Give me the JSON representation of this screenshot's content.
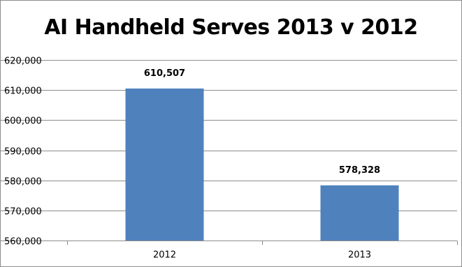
{
  "chart_data": {
    "type": "bar",
    "title": "AI Handheld Serves 2013 v 2012",
    "xlabel": "",
    "ylabel": "",
    "categories": [
      "2012",
      "2013"
    ],
    "values": [
      610507,
      578328
    ],
    "data_labels": [
      "610,507",
      "578,328"
    ],
    "ylim": [
      560000,
      620000
    ],
    "yticks": [
      560000,
      570000,
      580000,
      590000,
      600000,
      610000,
      620000
    ],
    "ytick_labels": [
      "560,000",
      "570,000",
      "580,000",
      "590,000",
      "600,000",
      "610,000",
      "620,000"
    ],
    "grid": true,
    "legend": "none",
    "bar_color": "#4f81bd",
    "grid_color": "#8c8c8c"
  }
}
